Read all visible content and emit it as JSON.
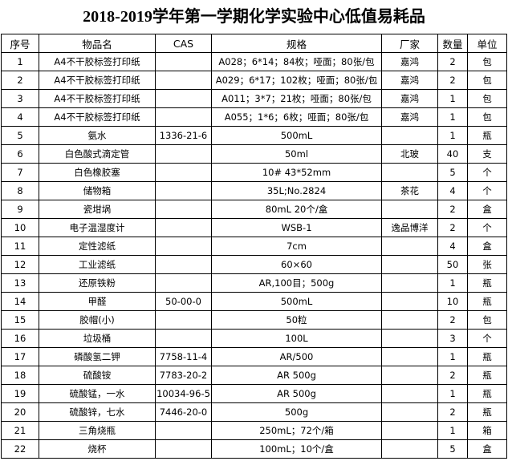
{
  "header": {
    "title": "2018-2019学年第一学期化学实验中心低值易耗品"
  },
  "table": {
    "columns": [
      "序号",
      "物品名",
      "CAS",
      "规格",
      "厂家",
      "数量",
      "单位"
    ],
    "rows": [
      [
        "1",
        "A4不干胶标签打印纸",
        null,
        "A028；6*14；84枚；哑面；80张/包",
        "嘉鸿",
        "2",
        "包"
      ],
      [
        "2",
        "A4不干胶标签打印纸",
        null,
        "A029；6*17；102枚；哑面；80张/包",
        "嘉鸿",
        "2",
        "包"
      ],
      [
        "3",
        "A4不干胶标签打印纸",
        null,
        "A011；3*7；21枚；哑面；80张/包",
        "嘉鸿",
        "1",
        "包"
      ],
      [
        "4",
        "A4不干胶标签打印纸",
        null,
        "A055；1*6；6枚；哑面；80张/包",
        "嘉鸿",
        "1",
        "包"
      ],
      [
        "5",
        "氨水",
        "1336-21-6",
        "500mL",
        null,
        "1",
        "瓶"
      ],
      [
        "6",
        "白色酸式滴定管",
        null,
        "50ml",
        "北玻",
        "40",
        "支"
      ],
      [
        "7",
        "白色橡胶塞",
        null,
        "10# 43*52mm",
        null,
        "5",
        "个"
      ],
      [
        "8",
        "储物箱",
        null,
        "35L;No.2824",
        "茶花",
        "4",
        "个"
      ],
      [
        "9",
        "瓷坩埚",
        null,
        "80mL 20个/盒",
        null,
        "2",
        "盒"
      ],
      [
        "10",
        "电子温湿度计",
        null,
        "WSB-1",
        "逸品博洋",
        "2",
        "个"
      ],
      [
        "11",
        "定性滤纸",
        null,
        "7cm",
        null,
        "4",
        "盒"
      ],
      [
        "12",
        "工业滤纸",
        null,
        "60×60",
        null,
        "50",
        "张"
      ],
      [
        "13",
        "还原铁粉",
        null,
        "AR,100目；500g",
        null,
        "1",
        "瓶"
      ],
      [
        "14",
        "甲醛",
        "50-00-0",
        "500mL",
        null,
        "10",
        "瓶"
      ],
      [
        "15",
        "胶帽(小)",
        null,
        "50粒",
        null,
        "2",
        "包"
      ],
      [
        "16",
        "垃圾桶",
        null,
        "100L",
        null,
        "3",
        "个"
      ],
      [
        "17",
        "磷酸氢二钾",
        "7758-11-4",
        "AR/500",
        null,
        "1",
        "瓶"
      ],
      [
        "18",
        "硫酸铵",
        "7783-20-2",
        "AR 500g",
        null,
        "2",
        "瓶"
      ],
      [
        "19",
        "硫酸锰，一水",
        "10034-96-5",
        "AR 500g",
        null,
        "1",
        "瓶"
      ],
      [
        "20",
        "硫酸锌，七水",
        "7446-20-0",
        "500g",
        null,
        "2",
        "瓶"
      ],
      [
        "21",
        "三角烧瓶",
        null,
        "250mL；72个/箱",
        null,
        "1",
        "箱"
      ],
      [
        "22",
        "烧杯",
        null,
        "100mL；10个/盒",
        null,
        "5",
        "盒"
      ]
    ]
  }
}
